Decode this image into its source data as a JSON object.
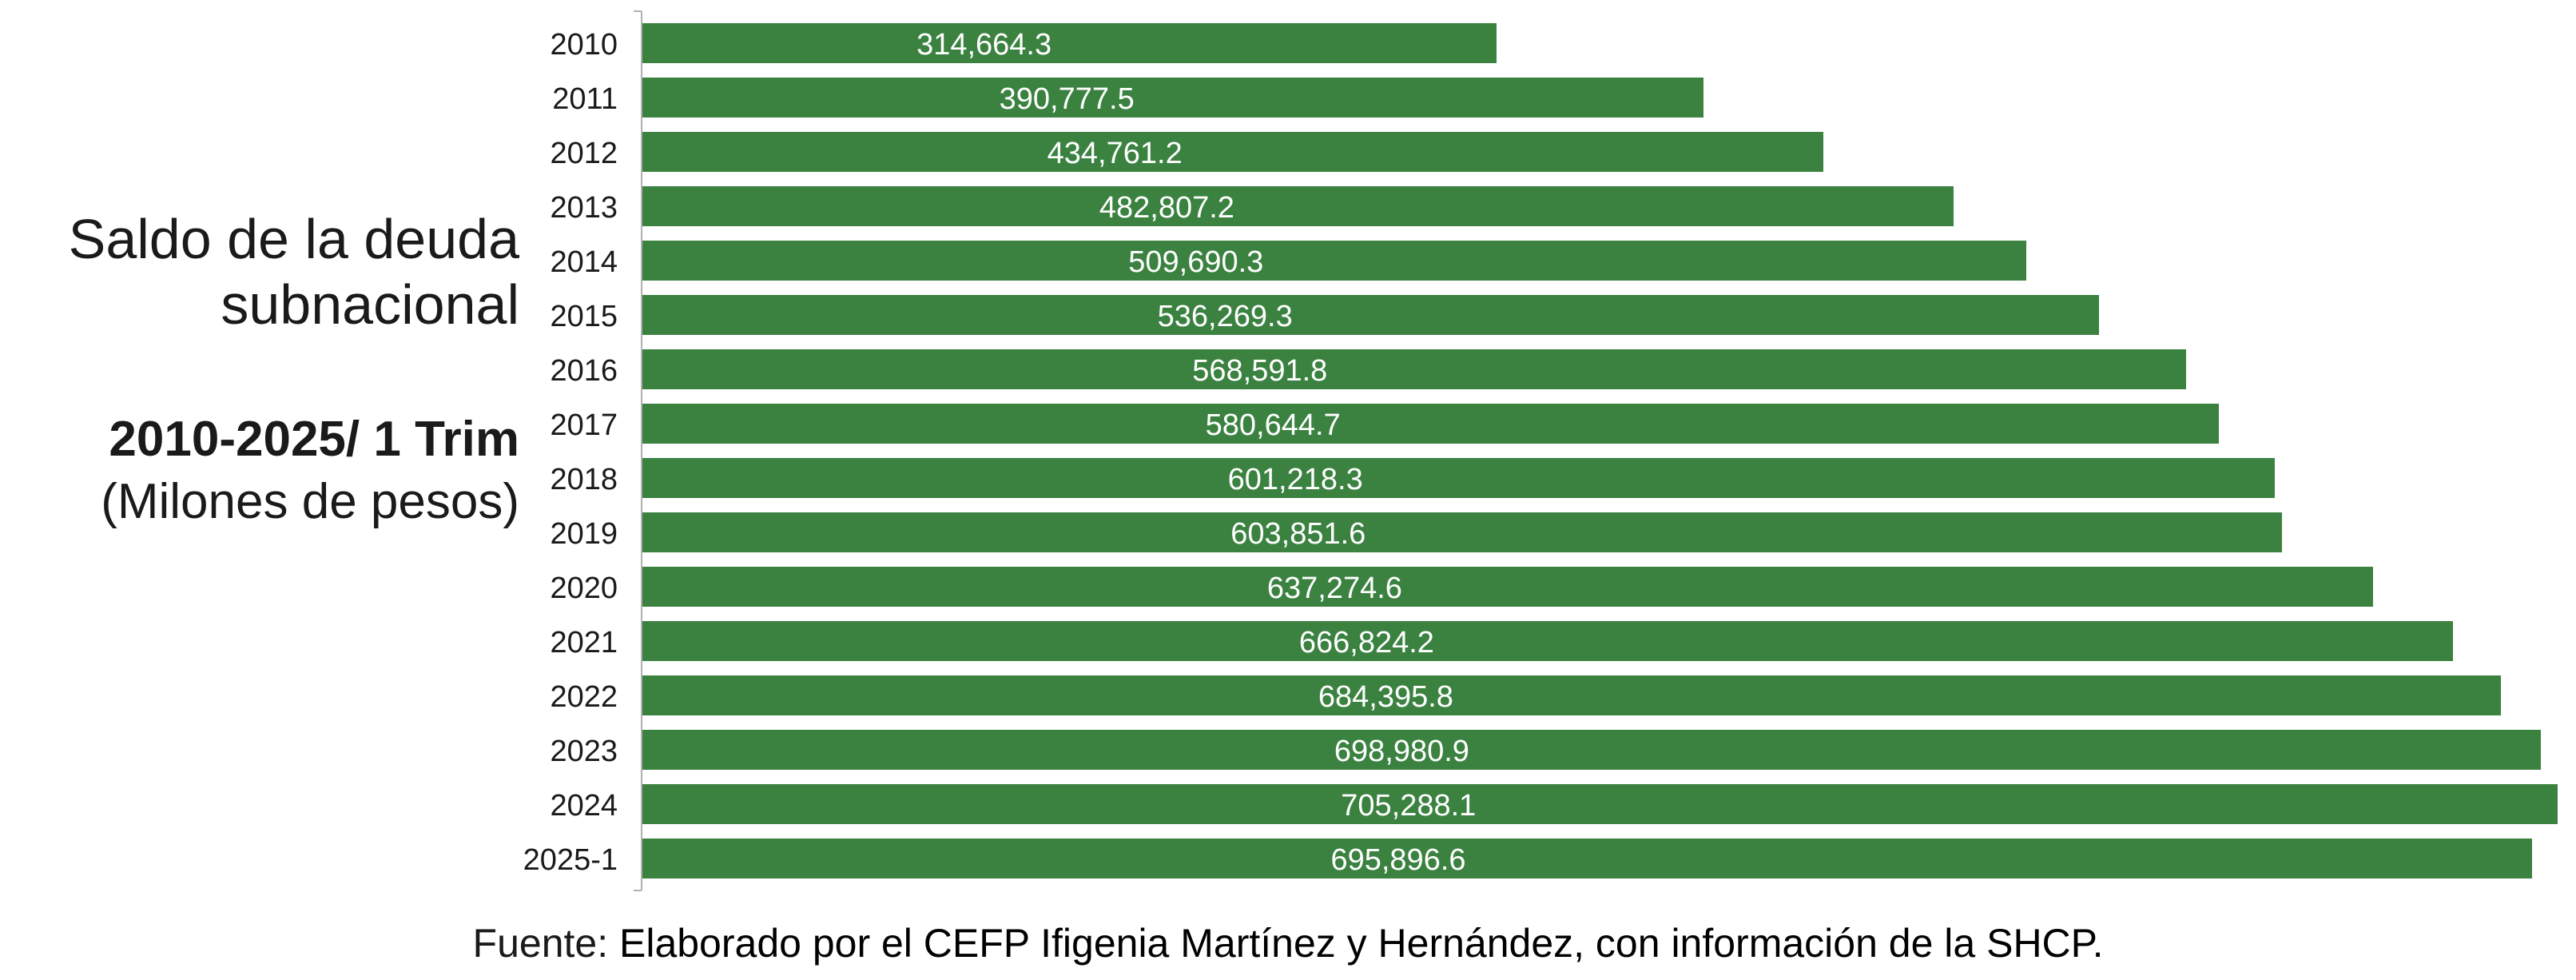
{
  "title": {
    "line1": "Saldo de la deuda",
    "line2": "subnacional",
    "period": "2010-2025/ 1 Trim",
    "units": "(Milones de pesos)"
  },
  "source": {
    "label": "Fuente:",
    "text": " Elaborado por el CEFP Ifigenia Martínez y Hernández, con información de la SHCP."
  },
  "colors": {
    "bar": "#3b8241",
    "value_text": "#ffffff",
    "axis": "#b0b0b0"
  },
  "chart_data": {
    "type": "bar",
    "orientation": "horizontal",
    "categories": [
      "2010",
      "2011",
      "2012",
      "2013",
      "2014",
      "2015",
      "2016",
      "2017",
      "2018",
      "2019",
      "2020",
      "2021",
      "2022",
      "2023",
      "2024",
      "2025-1"
    ],
    "values": [
      314664.3,
      390777.5,
      434761.2,
      482807.2,
      509690.3,
      536269.3,
      568591.8,
      580644.7,
      601218.3,
      603851.6,
      637274.6,
      666824.2,
      684395.8,
      698980.9,
      705288.1,
      695896.6
    ],
    "labels": [
      "314,664.3",
      "390,777.5",
      "434,761.2",
      "482,807.2",
      "509,690.3",
      "536,269.3",
      "568,591.8",
      "580,644.7",
      "601,218.3",
      "603,851.6",
      "637,274.6",
      "666,824.2",
      "684,395.8",
      "698,980.9",
      "705,288.1",
      "695,896.6"
    ],
    "grid": false,
    "legend": "none",
    "value_axis_shown": false
  }
}
